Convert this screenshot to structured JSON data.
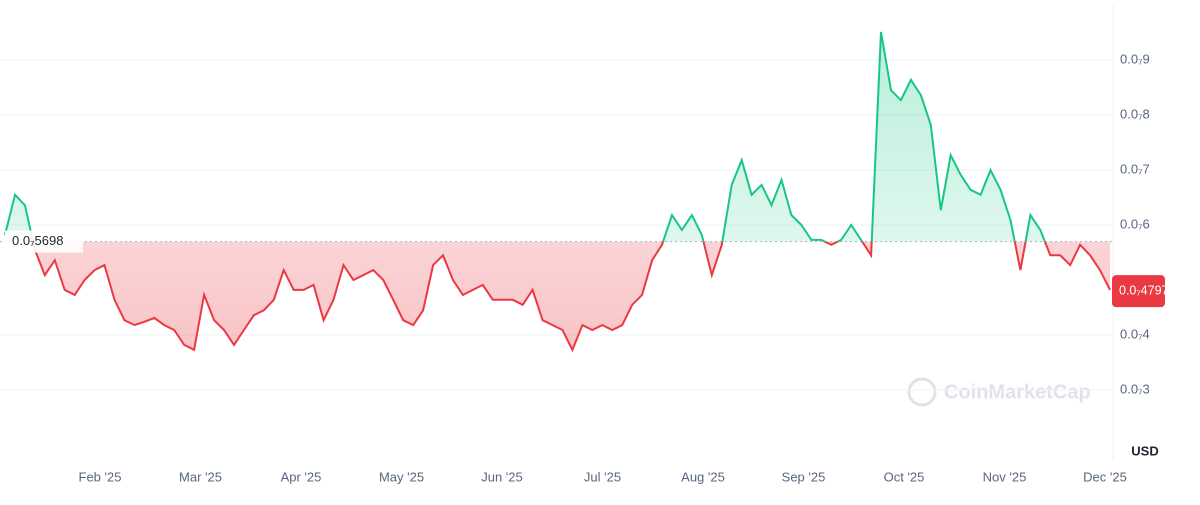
{
  "chart_data": {
    "type": "line",
    "currency": "USD",
    "watermark": "CoinMarketCap",
    "reference": {
      "value": 5.698e-08,
      "label": "0.0₇5698"
    },
    "current": {
      "value": 4.797e-08,
      "label": "0.0₇4797"
    },
    "xlabels": [
      "Feb '25",
      "Mar '25",
      "Apr '25",
      "May '25",
      "Jun '25",
      "Jul '25",
      "Aug '25",
      "Sep '25",
      "Oct '25",
      "Nov '25",
      "Dec '25"
    ],
    "ylim": [
      2e-08,
      1e-07
    ],
    "yticks": [
      {
        "value": 3e-08,
        "label": "0.0₇3"
      },
      {
        "value": 4e-08,
        "label": "0.0₇4"
      },
      {
        "value": 6e-08,
        "label": "0.0₇6"
      },
      {
        "value": 7e-08,
        "label": "0.0₇7"
      },
      {
        "value": 8e-08,
        "label": "0.0₇8"
      },
      {
        "value": 9e-08,
        "label": "0.0₇9"
      }
    ],
    "grid": true,
    "up_color": "#16c784",
    "down_color": "#ea3943",
    "values": [
      5.82e-08,
      6.55e-08,
      6.36e-08,
      5.55e-08,
      5.09e-08,
      5.36e-08,
      4.82e-08,
      4.73e-08,
      5e-08,
      5.18e-08,
      5.27e-08,
      4.64e-08,
      4.27e-08,
      4.18e-08,
      4.24e-08,
      4.31e-08,
      4.18e-08,
      4.09e-08,
      3.82e-08,
      3.73e-08,
      4.73e-08,
      4.27e-08,
      4.09e-08,
      3.82e-08,
      4.09e-08,
      4.36e-08,
      4.45e-08,
      4.64e-08,
      5.18e-08,
      4.82e-08,
      4.82e-08,
      4.91e-08,
      4.27e-08,
      4.64e-08,
      5.27e-08,
      5e-08,
      5.09e-08,
      5.18e-08,
      5e-08,
      4.64e-08,
      4.27e-08,
      4.18e-08,
      4.45e-08,
      5.27e-08,
      5.45e-08,
      5e-08,
      4.73e-08,
      4.82e-08,
      4.91e-08,
      4.64e-08,
      4.64e-08,
      4.64e-08,
      4.55e-08,
      4.82e-08,
      4.27e-08,
      4.18e-08,
      4.09e-08,
      3.73e-08,
      4.18e-08,
      4.09e-08,
      4.18e-08,
      4.09e-08,
      4.18e-08,
      4.55e-08,
      4.73e-08,
      5.36e-08,
      5.64e-08,
      6.18e-08,
      5.91e-08,
      6.18e-08,
      5.82e-08,
      5.09e-08,
      5.64e-08,
      6.73e-08,
      7.18e-08,
      6.55e-08,
      6.73e-08,
      6.36e-08,
      6.82e-08,
      6.18e-08,
      6e-08,
      5.73e-08,
      5.73e-08,
      5.64e-08,
      5.73e-08,
      6e-08,
      5.73e-08,
      5.45e-08,
      9.51e-08,
      8.45e-08,
      8.27e-08,
      8.64e-08,
      8.36e-08,
      7.82e-08,
      6.27e-08,
      7.27e-08,
      6.91e-08,
      6.64e-08,
      6.55e-08,
      7e-08,
      6.64e-08,
      6.09e-08,
      5.18e-08,
      6.18e-08,
      5.91e-08,
      5.45e-08,
      5.45e-08,
      5.27e-08,
      5.64e-08,
      5.45e-08,
      5.18e-08,
      4.82e-08
    ]
  }
}
